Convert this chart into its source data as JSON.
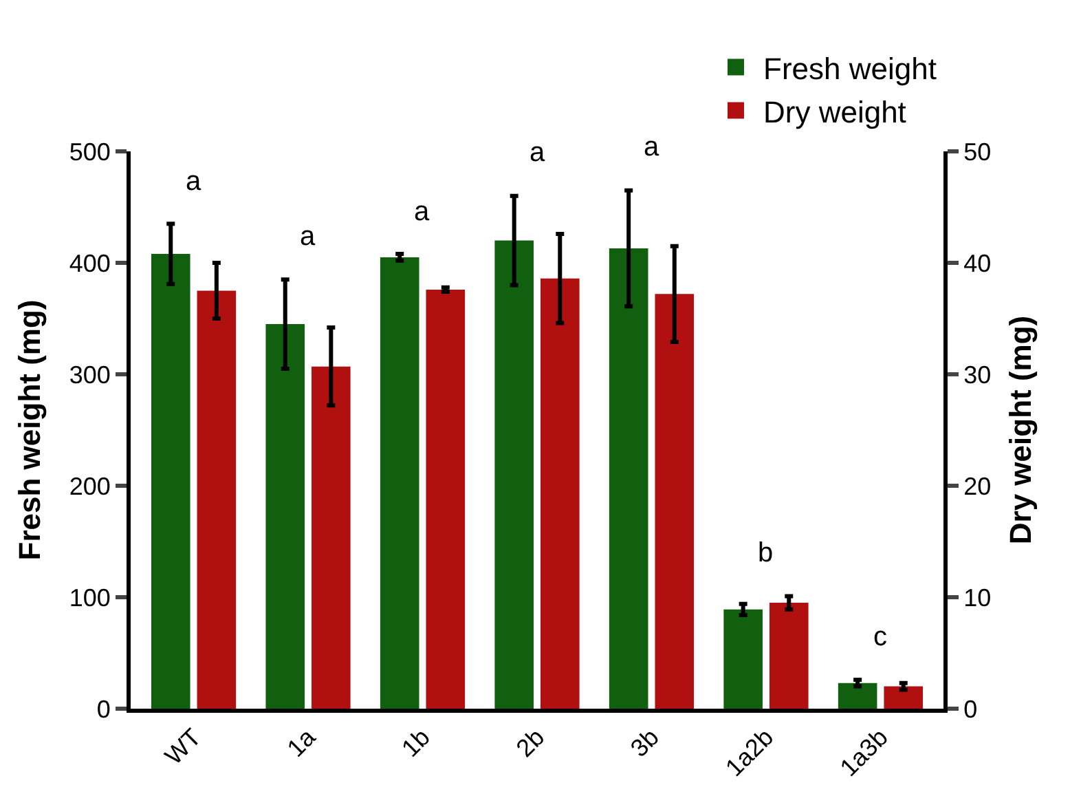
{
  "chart_data": {
    "type": "bar",
    "ylabel": "Fresh weight (mg)",
    "y2label": "Dry weight (mg)",
    "categories": [
      "WT",
      "1a",
      "1b",
      "2b",
      "3b",
      "1a2b",
      "1a3b"
    ],
    "series": [
      {
        "name": "Fresh weight",
        "color": "#106010",
        "values": [
          408,
          345,
          405,
          420,
          413,
          89,
          23
        ],
        "errors": [
          27,
          40,
          3,
          40,
          52,
          5,
          3
        ]
      },
      {
        "name": "Dry weight",
        "color": "#b01010",
        "axis": "y2",
        "values": [
          37.5,
          30.7,
          37.6,
          38.6,
          37.2,
          9.5,
          2.0
        ],
        "errors": [
          2.5,
          3.5,
          0.2,
          4,
          4.3,
          0.6,
          0.3
        ]
      }
    ],
    "ylim": [
      0,
      500
    ],
    "yticks": [
      0,
      100,
      200,
      300,
      400,
      500
    ],
    "y2lim": [
      0,
      50
    ],
    "y2ticks": [
      0,
      10,
      20,
      30,
      40,
      50
    ],
    "annotations": [
      "a",
      "a",
      "a",
      "a",
      "a",
      "b",
      "c"
    ],
    "legend": "top right"
  }
}
